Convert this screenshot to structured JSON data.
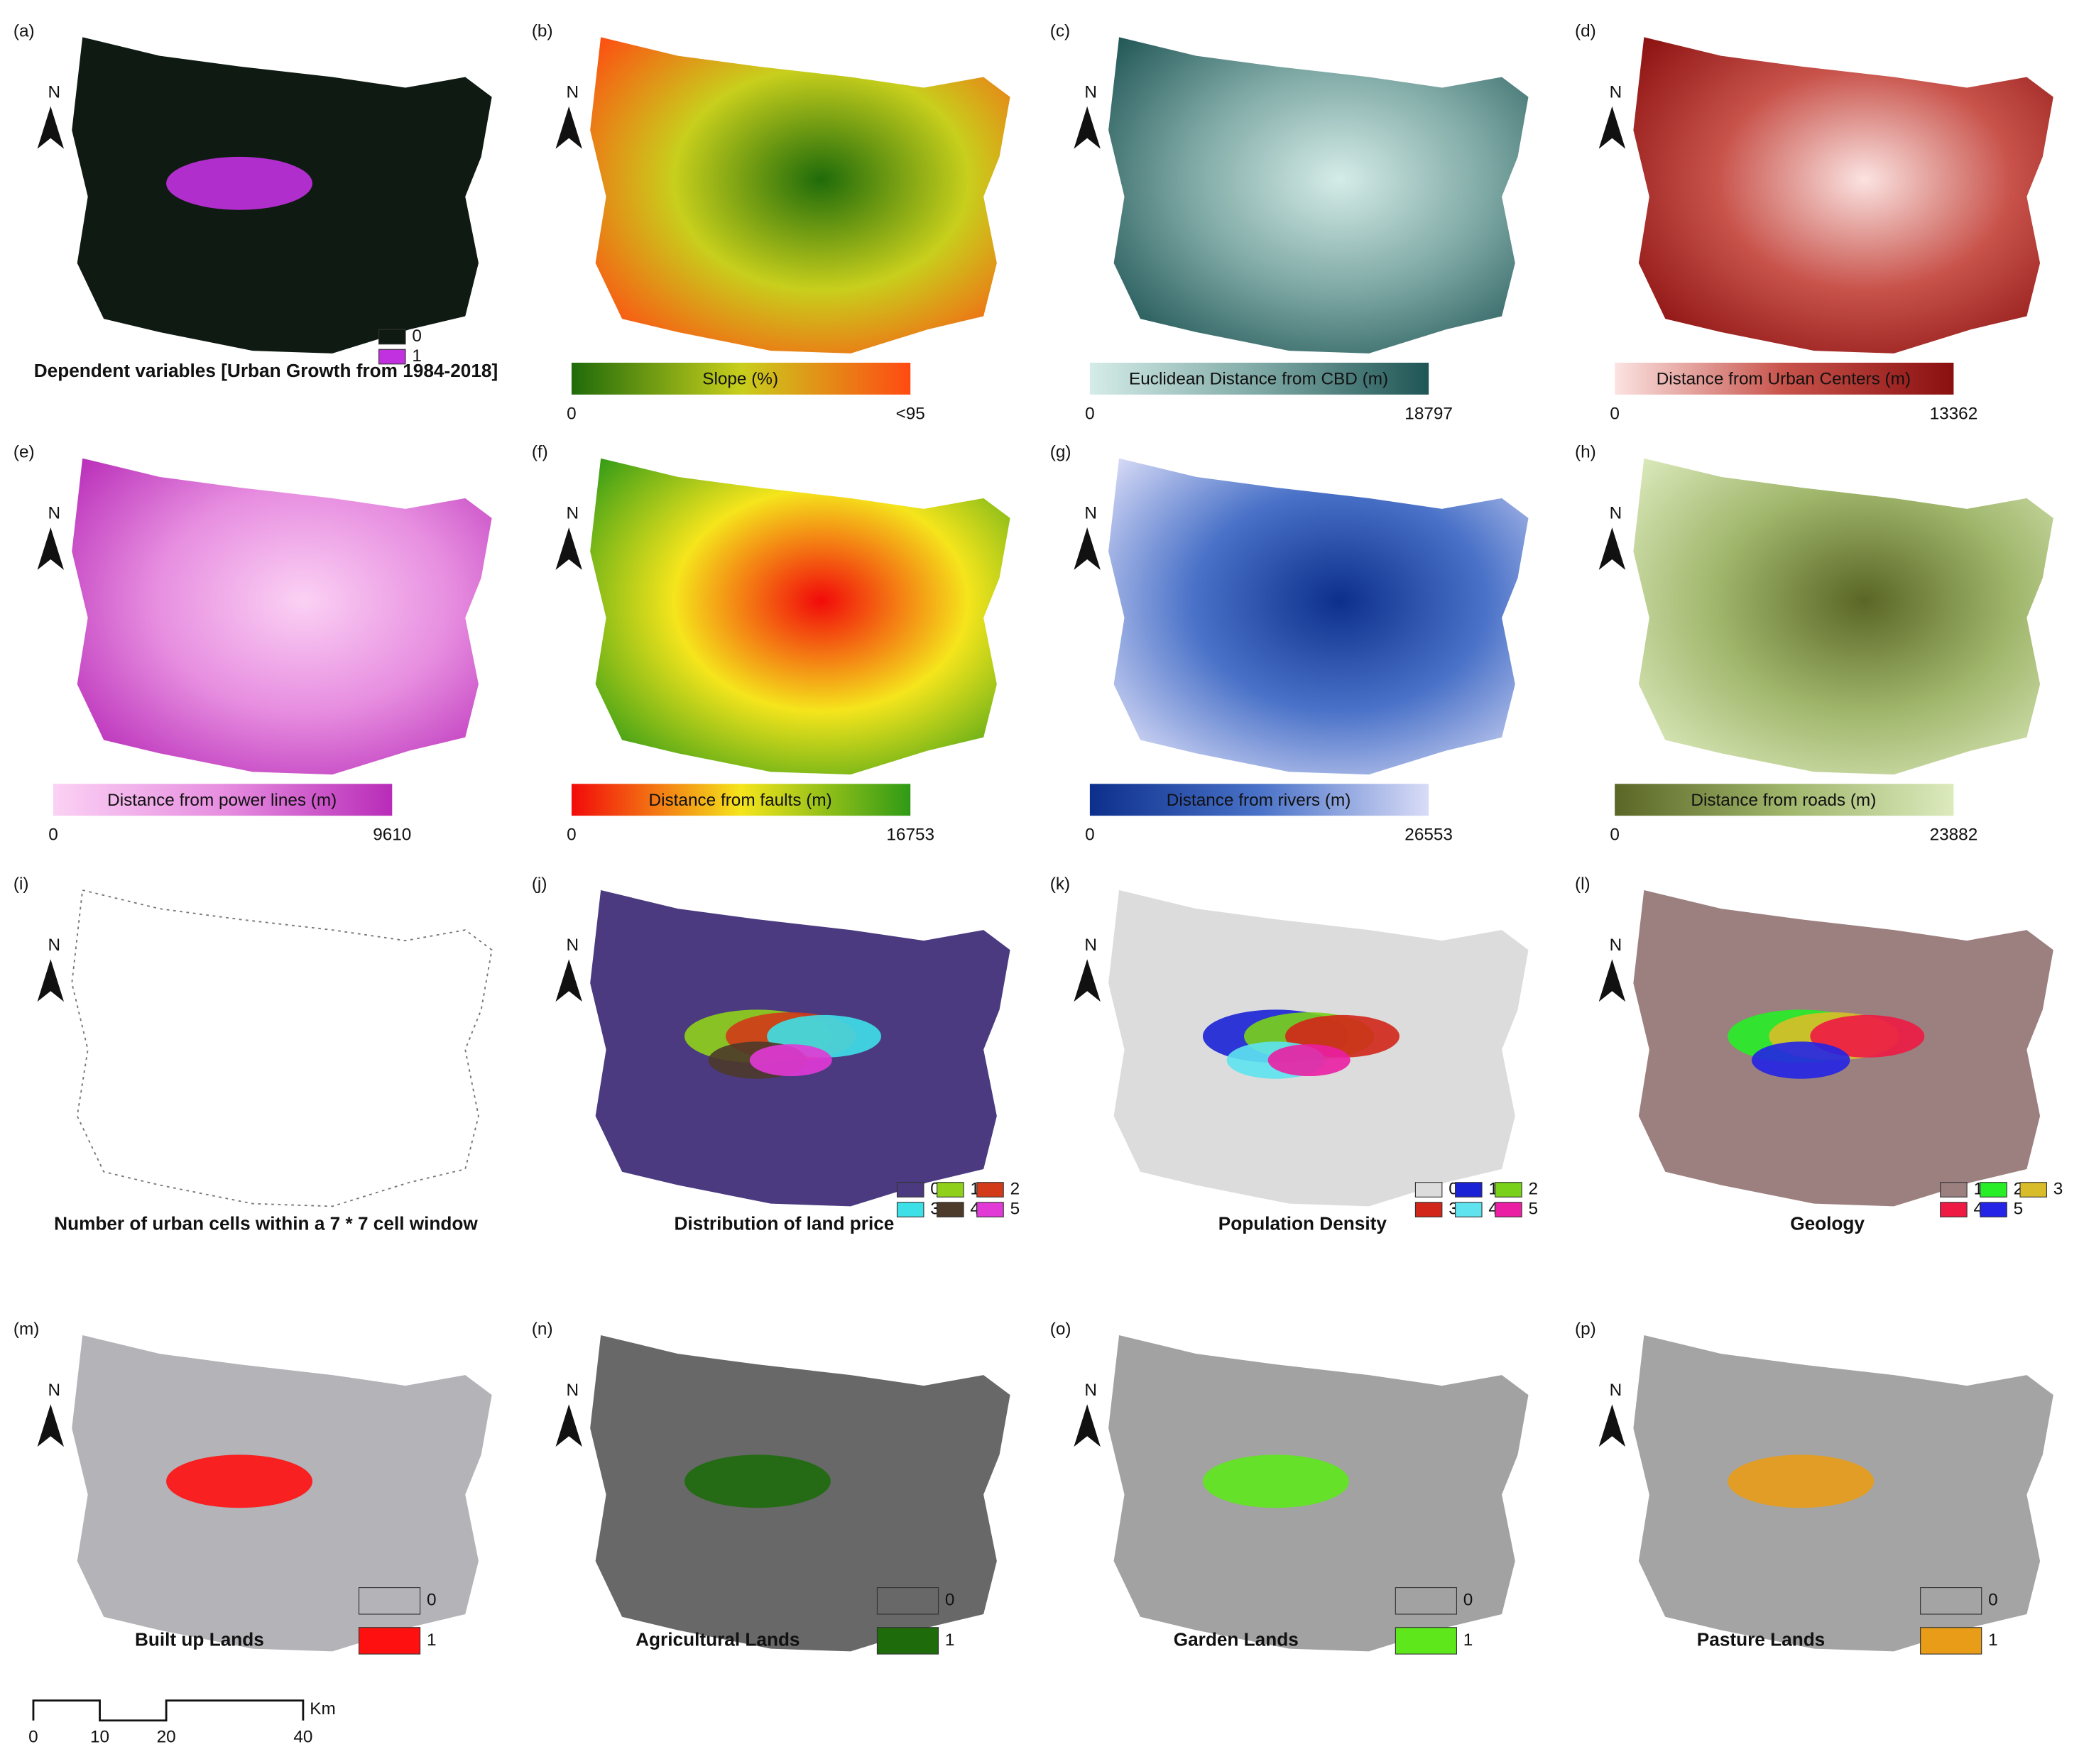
{
  "north": "N",
  "panels": [
    {
      "letter": "(a)",
      "title": "Dependent variables [Urban Growth from 1984-2018]",
      "legend": [
        {
          "label": "0",
          "color": "#0e1a12"
        },
        {
          "label": "1",
          "color": "#c231e0"
        }
      ]
    },
    {
      "letter": "(b)",
      "colorbar": {
        "title": "Slope (%)",
        "min": "0",
        "max": "<95",
        "colors": [
          "#1f6b0a",
          "#c8cf1c",
          "#ff4a12"
        ]
      }
    },
    {
      "letter": "(c)",
      "colorbar": {
        "title": "Euclidean Distance from CBD (m)",
        "min": "0",
        "max": "18797",
        "colors": [
          "#d5ece8",
          "#7fa9a5",
          "#1f5555"
        ]
      }
    },
    {
      "letter": "(d)",
      "colorbar": {
        "title": "Distance from Urban Centers (m)",
        "min": "0",
        "max": "13362",
        "colors": [
          "#fbe3e1",
          "#c8534b",
          "#8a0f0f"
        ]
      }
    },
    {
      "letter": "(e)",
      "colorbar": {
        "title": "Distance from power lines (m)",
        "min": "0",
        "max": "9610",
        "colors": [
          "#fbd1f4",
          "#e78ee0",
          "#b82cb8"
        ]
      }
    },
    {
      "letter": "(f)",
      "colorbar": {
        "title": "Distance from faults (m)",
        "min": "0",
        "max": "16753",
        "colors": [
          "#f20a0a",
          "#f5e51c",
          "#2f9a16"
        ]
      }
    },
    {
      "letter": "(g)",
      "colorbar": {
        "title": "Distance from rivers (m)",
        "min": "0",
        "max": "26553",
        "colors": [
          "#0c2f8c",
          "#4a72c8",
          "#d9dcf7"
        ]
      }
    },
    {
      "letter": "(h)",
      "colorbar": {
        "title": "Distance from roads (m)",
        "min": "0",
        "max": "23882",
        "colors": [
          "#5a6626",
          "#9fb56a",
          "#dceabd"
        ]
      }
    },
    {
      "letter": "(i)",
      "title": "Number of urban cells within a 7 * 7 cell window",
      "legend": []
    },
    {
      "letter": "(j)",
      "title": "Distribution of land price",
      "legend": [
        {
          "label": "0",
          "color": "#4b3a80"
        },
        {
          "label": "1",
          "color": "#8fd11a"
        },
        {
          "label": "2",
          "color": "#d23a1a"
        },
        {
          "label": "3",
          "color": "#3ee0e8"
        },
        {
          "label": "4",
          "color": "#4c3a2a"
        },
        {
          "label": "5",
          "color": "#e23ad6"
        }
      ]
    },
    {
      "letter": "(k)",
      "title": "Population Density",
      "legend": [
        {
          "label": "0",
          "color": "#dcdcdc"
        },
        {
          "label": "1",
          "color": "#1a22d6"
        },
        {
          "label": "2",
          "color": "#7ad11a"
        },
        {
          "label": "3",
          "color": "#d2261a"
        },
        {
          "label": "4",
          "color": "#5ee3ef"
        },
        {
          "label": "5",
          "color": "#ea1fa3"
        }
      ]
    },
    {
      "letter": "(l)",
      "title": "Geology",
      "legend": [
        {
          "label": "1",
          "color": "#9c7f7f"
        },
        {
          "label": "2",
          "color": "#27ee27"
        },
        {
          "label": "3",
          "color": "#d8bc2a"
        },
        {
          "label": "4",
          "color": "#ee1a44"
        },
        {
          "label": "5",
          "color": "#2424e6"
        }
      ]
    },
    {
      "letter": "(m)",
      "title": "Built up Lands",
      "legend": [
        {
          "label": "0",
          "color": "#b3b3b8"
        },
        {
          "label": "1",
          "color": "#ff1010"
        }
      ]
    },
    {
      "letter": "(n)",
      "title": "Agricultural Lands",
      "legend": [
        {
          "label": "0",
          "color": "#686868"
        },
        {
          "label": "1",
          "color": "#1e6b0c"
        }
      ]
    },
    {
      "letter": "(o)",
      "title": "Garden Lands",
      "legend": [
        {
          "label": "0",
          "color": "#a2a2a2"
        },
        {
          "label": "1",
          "color": "#5ee81c"
        }
      ]
    },
    {
      "letter": "(p)",
      "title": "Pasture Lands",
      "legend": [
        {
          "label": "0",
          "color": "#a4a4a4"
        },
        {
          "label": "1",
          "color": "#e89c18"
        }
      ]
    }
  ],
  "scale_bar": {
    "ticks": [
      "0",
      "10",
      "20",
      "40"
    ],
    "unit": "Km"
  }
}
